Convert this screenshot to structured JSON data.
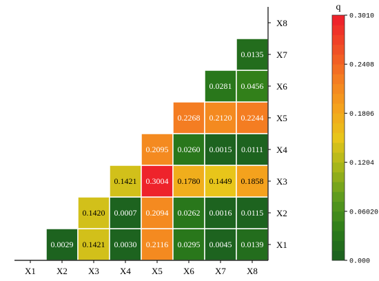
{
  "chart_data": {
    "type": "heatmap",
    "title": "",
    "x_categories": [
      "X1",
      "X2",
      "X3",
      "X4",
      "X5",
      "X6",
      "X7",
      "X8"
    ],
    "y_categories": [
      "X1",
      "X2",
      "X3",
      "X4",
      "X5",
      "X6",
      "X7",
      "X8"
    ],
    "cells": [
      {
        "x": "X2",
        "y": "X1",
        "value": 0.0029,
        "label": "0.0029"
      },
      {
        "x": "X3",
        "y": "X1",
        "value": 0.1421,
        "label": "0.1421"
      },
      {
        "x": "X4",
        "y": "X1",
        "value": 0.003,
        "label": "0.0030"
      },
      {
        "x": "X5",
        "y": "X1",
        "value": 0.2116,
        "label": "0.2116"
      },
      {
        "x": "X6",
        "y": "X1",
        "value": 0.0295,
        "label": "0.0295"
      },
      {
        "x": "X7",
        "y": "X1",
        "value": 0.0045,
        "label": "0.0045"
      },
      {
        "x": "X8",
        "y": "X1",
        "value": 0.0139,
        "label": "0.0139"
      },
      {
        "x": "X3",
        "y": "X2",
        "value": 0.142,
        "label": "0.1420"
      },
      {
        "x": "X4",
        "y": "X2",
        "value": 0.0007,
        "label": "0.0007"
      },
      {
        "x": "X5",
        "y": "X2",
        "value": 0.2094,
        "label": "0.2094"
      },
      {
        "x": "X6",
        "y": "X2",
        "value": 0.0262,
        "label": "0.0262"
      },
      {
        "x": "X7",
        "y": "X2",
        "value": 0.0016,
        "label": "0.0016"
      },
      {
        "x": "X8",
        "y": "X2",
        "value": 0.0115,
        "label": "0.0115"
      },
      {
        "x": "X4",
        "y": "X3",
        "value": 0.1421,
        "label": "0.1421"
      },
      {
        "x": "X5",
        "y": "X3",
        "value": 0.3004,
        "label": "0.3004"
      },
      {
        "x": "X6",
        "y": "X3",
        "value": 0.178,
        "label": "0.1780"
      },
      {
        "x": "X7",
        "y": "X3",
        "value": 0.1449,
        "label": "0.1449"
      },
      {
        "x": "X8",
        "y": "X3",
        "value": 0.1858,
        "label": "0.1858"
      },
      {
        "x": "X5",
        "y": "X4",
        "value": 0.2095,
        "label": "0.2095"
      },
      {
        "x": "X6",
        "y": "X4",
        "value": 0.026,
        "label": "0.0260"
      },
      {
        "x": "X7",
        "y": "X4",
        "value": 0.0015,
        "label": "0.0015"
      },
      {
        "x": "X8",
        "y": "X4",
        "value": 0.0111,
        "label": "0.0111"
      },
      {
        "x": "X6",
        "y": "X5",
        "value": 0.2268,
        "label": "0.2268"
      },
      {
        "x": "X7",
        "y": "X5",
        "value": 0.212,
        "label": "0.2120"
      },
      {
        "x": "X8",
        "y": "X5",
        "value": 0.2244,
        "label": "0.2244"
      },
      {
        "x": "X7",
        "y": "X6",
        "value": 0.0281,
        "label": "0.0281"
      },
      {
        "x": "X8",
        "y": "X6",
        "value": 0.0456,
        "label": "0.0456"
      },
      {
        "x": "X8",
        "y": "X7",
        "value": 0.0135,
        "label": "0.0135"
      }
    ],
    "colorbar": {
      "title": "q",
      "min": 0.0,
      "max": 0.301,
      "ticks": [
        {
          "value": 0.0,
          "label": "0.000"
        },
        {
          "value": 0.0602,
          "label": "0.06020"
        },
        {
          "value": 0.1204,
          "label": "0.1204"
        },
        {
          "value": 0.1806,
          "label": "0.1806"
        },
        {
          "value": 0.2408,
          "label": "0.2408"
        },
        {
          "value": 0.301,
          "label": "0.3010"
        }
      ],
      "colors": [
        "#1a5e20",
        "#2d7d1a",
        "#5a9a1e",
        "#a3b51a",
        "#e8c51a",
        "#f4a11d",
        "#f47a22",
        "#f04a26",
        "#ee1c2c"
      ],
      "levels": 25
    },
    "x_axis_position": "bottom",
    "y_axis_position": "right",
    "grid": false,
    "legend": "colorbar-right"
  }
}
